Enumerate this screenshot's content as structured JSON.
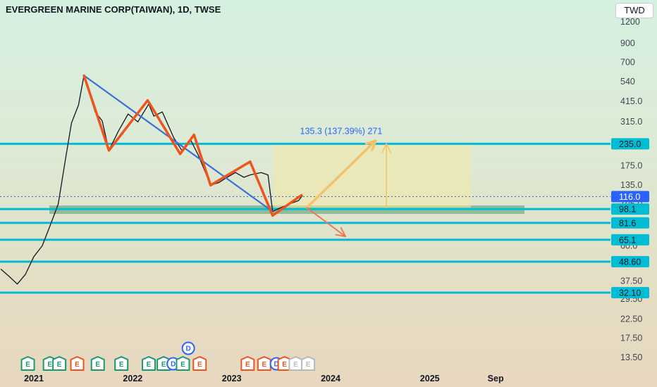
{
  "header": {
    "title": "EVERGREEN MARINE CORP(TAIWAN), 1D, TWSE",
    "currency": "TWD"
  },
  "chart_data": {
    "type": "line",
    "title": "EVERGREEN MARINE CORP(TAIWAN), 1D, TWSE",
    "scale": "log",
    "ylim": [
      12,
      1300
    ],
    "y_ticks": [
      "1200",
      "900",
      "700",
      "540",
      "415.0",
      "315.0",
      "235.0",
      "175.0",
      "135.0",
      "105.0",
      "81.6",
      "60.0",
      "48.60",
      "37.50",
      "29.50",
      "22.50",
      "17.50",
      "13.50"
    ],
    "y_tick_values": [
      1200,
      900,
      700,
      540,
      415,
      315,
      235,
      175,
      135,
      105,
      81.6,
      60,
      48.6,
      37.5,
      29.5,
      22.5,
      17.5,
      13.5
    ],
    "x_ticks": [
      "2021",
      "2022",
      "2023",
      "2024",
      "2025",
      "Sep"
    ],
    "x_tick_dates": [
      "2021-01-01",
      "2022-01-01",
      "2023-01-01",
      "2024-01-01",
      "2025-01-01",
      "2025-09-01"
    ],
    "xlim": [
      "2020-09-01",
      "2025-11-15"
    ],
    "current_price": {
      "label": "116.0",
      "value": 116.0
    },
    "levels": [
      {
        "label": "235.0",
        "value": 235.0
      },
      {
        "label": "98.1",
        "value": 98.1
      },
      {
        "label": "81.6",
        "value": 81.6
      },
      {
        "label": "65.1",
        "value": 65.1
      },
      {
        "label": "48.60",
        "value": 48.6
      },
      {
        "label": "32.10",
        "value": 32.1
      }
    ],
    "support_zone": [
      92,
      103
    ],
    "price_series": {
      "x": [
        "2020-09-01",
        "2020-10-01",
        "2020-11-01",
        "2020-12-01",
        "2021-01-01",
        "2021-02-01",
        "2021-03-01",
        "2021-04-01",
        "2021-05-01",
        "2021-05-20",
        "2021-06-15",
        "2021-07-05",
        "2021-08-15",
        "2021-09-10",
        "2021-10-05",
        "2021-11-10",
        "2021-12-15",
        "2022-01-20",
        "2022-03-01",
        "2022-03-20",
        "2022-04-20",
        "2022-06-01",
        "2022-07-01",
        "2022-08-01",
        "2022-09-01",
        "2022-10-15",
        "2022-11-15",
        "2022-12-15",
        "2023-01-15",
        "2023-02-15",
        "2023-03-10",
        "2023-04-20",
        "2023-05-15",
        "2023-06-01",
        "2023-07-01",
        "2023-08-01",
        "2023-09-05",
        "2023-09-20"
      ],
      "values": [
        44,
        40,
        36,
        41,
        52,
        60,
        78,
        105,
        205,
        310,
        395,
        585,
        360,
        320,
        215,
        280,
        350,
        315,
        400,
        340,
        360,
        255,
        215,
        250,
        200,
        135,
        140,
        150,
        160,
        150,
        155,
        160,
        155,
        95,
        100,
        105,
        110,
        118
      ]
    },
    "zigzag": {
      "x": [
        "2021-07-05",
        "2021-10-05",
        "2022-02-25",
        "2022-06-25",
        "2022-08-15",
        "2022-10-15",
        "2023-03-10",
        "2023-06-01",
        "2023-09-15"
      ],
      "values": [
        585,
        215,
        420,
        205,
        265,
        135,
        185,
        90,
        118
      ]
    },
    "trendline": {
      "x": [
        "2021-07-05",
        "2023-06-01"
      ],
      "values": [
        585,
        95
      ]
    },
    "projection": {
      "label": "135.3 (137.39%) 271",
      "up": {
        "x": [
          "2023-10-05",
          "2024-06-15"
        ],
        "values": [
          100,
          245
        ]
      },
      "down": {
        "x": [
          "2023-10-05",
          "2024-02-25"
        ],
        "values": [
          100,
          68
        ]
      },
      "measure": {
        "x": [
          "2024-07-25",
          "2024-07-25"
        ],
        "values": [
          100,
          235
        ]
      }
    },
    "events": [
      {
        "label": "E",
        "x": "2020-12-10",
        "kind": "green"
      },
      {
        "label": "E",
        "x": "2021-03-01",
        "kind": "green"
      },
      {
        "label": "E",
        "x": "2021-04-05",
        "kind": "green"
      },
      {
        "label": "E",
        "x": "2021-06-10",
        "kind": "red"
      },
      {
        "label": "E",
        "x": "2021-08-25",
        "kind": "green"
      },
      {
        "label": "E",
        "x": "2021-11-20",
        "kind": "green"
      },
      {
        "label": "E",
        "x": "2022-03-01",
        "kind": "green"
      },
      {
        "label": "E",
        "x": "2022-04-25",
        "kind": "green"
      },
      {
        "label": "D",
        "x": "2022-05-30",
        "kind": "blue"
      },
      {
        "label": "E",
        "x": "2022-07-05",
        "kind": "green"
      },
      {
        "label": "D",
        "x": "2022-07-25",
        "kind": "blue-top"
      },
      {
        "label": "E",
        "x": "2022-09-05",
        "kind": "red"
      },
      {
        "label": "E",
        "x": "2023-03-01",
        "kind": "red"
      },
      {
        "label": "E",
        "x": "2023-05-01",
        "kind": "red"
      },
      {
        "label": "D",
        "x": "2023-06-15",
        "kind": "blue"
      },
      {
        "label": "E",
        "x": "2023-07-15",
        "kind": "red"
      },
      {
        "label": "E",
        "x": "2023-08-25",
        "kind": "gray"
      },
      {
        "label": "E",
        "x": "2023-10-10",
        "kind": "gray"
      }
    ]
  }
}
